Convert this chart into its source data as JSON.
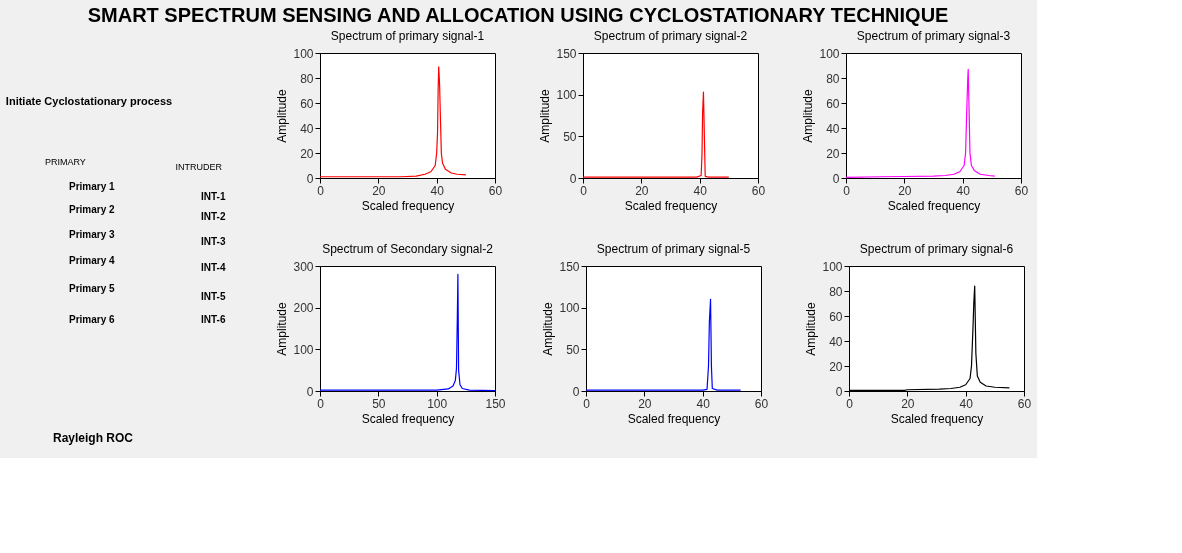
{
  "chart_data": [
    {
      "type": "other",
      "title": "SMART SPECTRUM SENSING AND ALLOCATION  USING CYCLOSTATIONARY TECHNIQUE",
      "annotations": [
        "Initiate Cyclostationary process",
        "PRIMARY",
        "Primary  1",
        "Primary 2",
        "Primary 3",
        "Primary 4",
        "Primary 5",
        "Primary 6",
        "INTRUDER",
        "INT-1",
        "INT-2",
        "INT-3",
        "INT-4",
        "INT-5",
        "INT-6",
        "Rayleigh ROC"
      ]
    },
    {
      "type": "line",
      "title": "Spectrum of primary signal-1",
      "xlabel": "Scaled frequency",
      "ylabel": "Amplitude",
      "xlim": [
        0,
        60
      ],
      "xticks": [
        0,
        20,
        40,
        60
      ],
      "ylim": [
        0,
        100
      ],
      "yticks": [
        0,
        20,
        40,
        60,
        80,
        100
      ],
      "grid": false,
      "marker": "none",
      "line_style": "solid",
      "series": [
        {
          "color": "#ff0000",
          "x": [
            0,
            10,
            20,
            28,
            33,
            36,
            38,
            39.5,
            40,
            40.3,
            40.5,
            40.7,
            41,
            41.3,
            41.6,
            42,
            43,
            45,
            47,
            50
          ],
          "values": [
            1,
            1,
            1,
            1,
            1.5,
            3,
            5,
            10,
            20,
            36,
            70,
            89,
            75,
            47,
            20,
            12,
            7,
            4,
            3,
            2.5
          ]
        }
      ]
    },
    {
      "type": "line",
      "title": "Spectrum of primary signal-2",
      "xlabel": "Scaled frequency",
      "ylabel": "Amplitude",
      "xlim": [
        0,
        60
      ],
      "xticks": [
        0,
        20,
        40,
        60
      ],
      "ylim": [
        0,
        150
      ],
      "yticks": [
        0,
        50,
        100,
        150
      ],
      "grid": false,
      "marker": "none",
      "line_style": "solid",
      "series": [
        {
          "color": "#ff0000",
          "x": [
            0,
            20,
            39,
            40.5,
            40.8,
            41,
            41.3,
            41.6,
            41.9,
            43,
            50
          ],
          "values": [
            1,
            1,
            1,
            3,
            28,
            78,
            103,
            52,
            2,
            1,
            1
          ]
        }
      ]
    },
    {
      "type": "line",
      "title": "Spectrum of primary signal-3",
      "xlabel": "Scaled frequency",
      "ylabel": "Amplitude",
      "xlim": [
        0,
        60
      ],
      "xticks": [
        0,
        20,
        40,
        60
      ],
      "ylim": [
        0,
        100
      ],
      "yticks": [
        0,
        20,
        40,
        60,
        80,
        100
      ],
      "grid": false,
      "marker": "none",
      "line_style": "solid",
      "series": [
        {
          "color": "#ff00ff",
          "x": [
            0,
            12,
            20,
            30,
            34,
            37,
            39,
            40.5,
            41,
            41.4,
            41.7,
            41.9,
            42.2,
            42.5,
            43,
            44,
            46,
            49,
            51
          ],
          "values": [
            0.5,
            1,
            1.2,
            1.5,
            2,
            3,
            5,
            10,
            20,
            54,
            77,
            87,
            54,
            20,
            10,
            6,
            3,
            2,
            1.5
          ]
        }
      ]
    },
    {
      "type": "line",
      "title": "Spectrum of Secondary signal-2",
      "xlabel": "Scaled frequency",
      "ylabel": "Amplitude",
      "xlim": [
        0,
        150
      ],
      "xticks": [
        0,
        50,
        100,
        150
      ],
      "ylim": [
        0,
        300
      ],
      "yticks": [
        0,
        100,
        200,
        300
      ],
      "grid": false,
      "marker": "none",
      "line_style": "solid",
      "series": [
        {
          "color": "#0000ff",
          "x": [
            0,
            50,
            100,
            110,
            114,
            116,
            117,
            117.7,
            118.2,
            118.8,
            120,
            122,
            128,
            150
          ],
          "values": [
            2,
            2,
            2,
            5,
            12,
            25,
            55,
            175,
            280,
            50,
            15,
            6,
            2,
            1
          ]
        }
      ]
    },
    {
      "type": "line",
      "title": "Spectrum of primary signal-5",
      "xlabel": "Scaled frequency",
      "ylabel": "Amplitude",
      "xlim": [
        0,
        60
      ],
      "xticks": [
        0,
        20,
        40,
        60
      ],
      "ylim": [
        0,
        150
      ],
      "yticks": [
        0,
        50,
        100,
        150
      ],
      "grid": false,
      "marker": "none",
      "line_style": "solid",
      "series": [
        {
          "color": "#0000ff",
          "x": [
            0,
            20,
            40,
            41.5,
            42,
            42.3,
            42.7,
            43,
            43.3,
            45,
            53
          ],
          "values": [
            1,
            1,
            1,
            2,
            30,
            83,
            110,
            30,
            3,
            1,
            1
          ]
        }
      ]
    },
    {
      "type": "line",
      "title": "Spectrum of primary signal-6",
      "xlabel": "Scaled frequency",
      "ylabel": "Amplitude",
      "xlim": [
        0,
        60
      ],
      "xticks": [
        0,
        20,
        40,
        60
      ],
      "ylim": [
        0,
        100
      ],
      "yticks": [
        0,
        20,
        40,
        60,
        80,
        100
      ],
      "grid": false,
      "marker": "none",
      "line_style": "solid",
      "series": [
        {
          "color": "#000000",
          "x": [
            0,
            19,
            20,
            31,
            35,
            38,
            40,
            41.5,
            42,
            42.5,
            42.8,
            43.1,
            43.5,
            44,
            45,
            47,
            50,
            55
          ],
          "values": [
            0.5,
            0.5,
            1,
            1.5,
            2,
            3,
            5,
            10,
            20,
            50,
            71,
            84,
            30,
            12,
            7,
            4,
            3,
            2.5
          ]
        }
      ]
    }
  ]
}
